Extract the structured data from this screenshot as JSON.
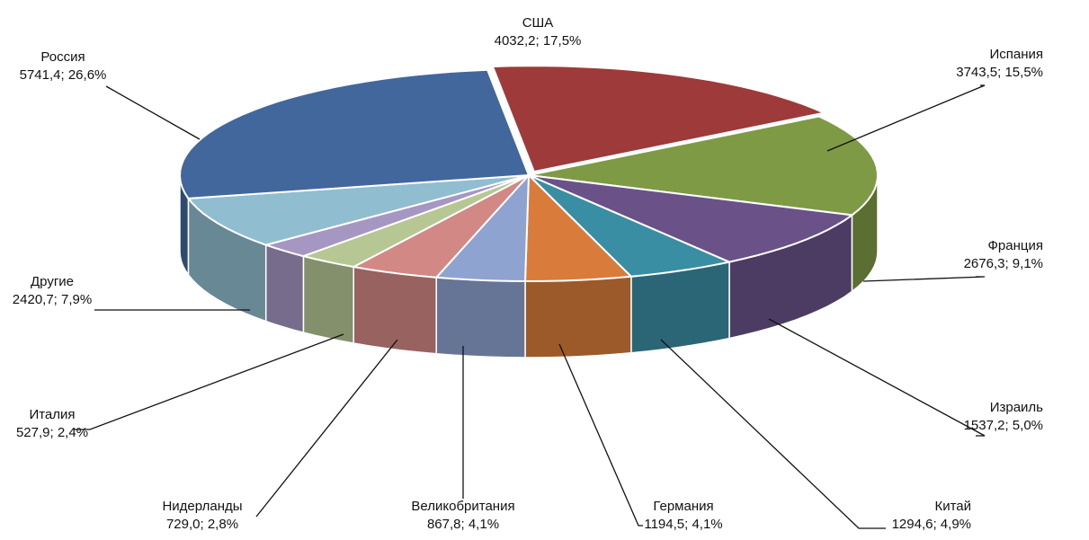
{
  "chart_data": {
    "type": "pie",
    "style": "3d-exploded",
    "title": "",
    "slices": [
      {
        "name": "США",
        "value": 4032.2,
        "percent": 17.5,
        "value_label": "4032,2",
        "percent_label": "17,5%",
        "color": "#9e3b3a"
      },
      {
        "name": "Испания",
        "value": 3743.5,
        "percent": 15.5,
        "value_label": "3743,5",
        "percent_label": "15,5%",
        "color": "#7f9a45"
      },
      {
        "name": "Франция",
        "value": 2676.3,
        "percent": 9.1,
        "value_label": "2676,3",
        "percent_label": "9,1%",
        "color": "#6a5289"
      },
      {
        "name": "Израиль",
        "value": 1537.2,
        "percent": 5.0,
        "value_label": "1537,2",
        "percent_label": "5,0%",
        "color": "#3a8ea3"
      },
      {
        "name": "Китай",
        "value": 1294.6,
        "percent": 4.9,
        "value_label": "1294,6",
        "percent_label": "4,9%",
        "color": "#d87b3b"
      },
      {
        "name": "Германия",
        "value": 1194.5,
        "percent": 4.1,
        "value_label": "1194,5",
        "percent_label": "4,1%",
        "color": "#8ea3cf"
      },
      {
        "name": "Великобритания",
        "value": 867.8,
        "percent": 4.1,
        "value_label": "867,8",
        "percent_label": "4,1%",
        "color": "#d28884"
      },
      {
        "name": "Нидерланды",
        "value": 729.0,
        "percent": 2.8,
        "value_label": "729,0",
        "percent_label": "2,8%",
        "color": "#b7c794"
      },
      {
        "name": "Италия",
        "value": 527.9,
        "percent": 2.4,
        "value_label": "527,9",
        "percent_label": "2,4%",
        "color": "#a696c2"
      },
      {
        "name": "Другие",
        "value": 2420.7,
        "percent": 7.9,
        "value_label": "2420,7",
        "percent_label": "7,9%",
        "color": "#91bdd0"
      },
      {
        "name": "Россия",
        "value": 5741.4,
        "percent": 26.6,
        "value_label": "5741,4",
        "percent_label": "26,6%",
        "color": "#41679d"
      }
    ]
  }
}
